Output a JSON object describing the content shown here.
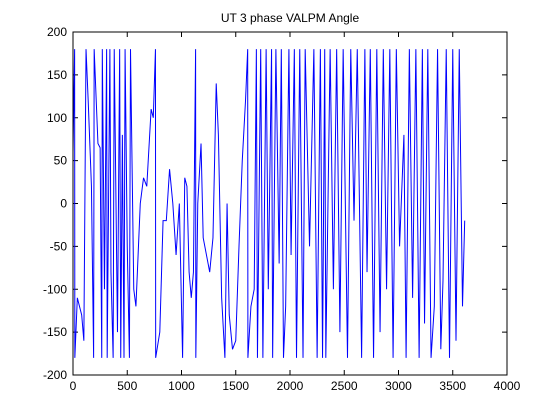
{
  "chart_data": {
    "type": "line",
    "title": "UT 3 phase VALPM Angle",
    "series": [
      {
        "color": "#0000ff",
        "x": [
          0,
          15,
          17,
          40,
          80,
          100,
          120,
          140,
          170,
          190,
          195,
          230,
          250,
          265,
          270,
          290,
          310,
          315,
          340,
          350,
          370,
          380,
          410,
          430,
          440,
          455,
          470,
          480,
          500,
          520,
          530,
          560,
          580,
          620,
          650,
          680,
          720,
          740,
          760,
          762,
          800,
          830,
          860,
          890,
          920,
          950,
          980,
          1010,
          1030,
          1050,
          1070,
          1090,
          1110,
          1130,
          1132,
          1150,
          1180,
          1200,
          1230,
          1260,
          1290,
          1320,
          1340,
          1370,
          1400,
          1420,
          1440,
          1470,
          1500,
          1530,
          1560,
          1590,
          1610,
          1612,
          1640,
          1670,
          1690,
          1700,
          1730,
          1750,
          1780,
          1800,
          1830,
          1840,
          1870,
          1900,
          1920,
          1940,
          1960,
          1990,
          2010,
          2040,
          2060,
          2090,
          2120,
          2140,
          2180,
          2220,
          2250,
          2280,
          2300,
          2320,
          2330,
          2370,
          2400,
          2430,
          2460,
          2490,
          2530,
          2560,
          2590,
          2620,
          2660,
          2690,
          2710,
          2740,
          2770,
          2800,
          2830,
          2860,
          2890,
          2920,
          2950,
          2980,
          3010,
          3050,
          3070,
          3100,
          3130,
          3160,
          3190,
          3220,
          3240,
          3270,
          3300,
          3330,
          3360,
          3390,
          3410,
          3440,
          3470,
          3500,
          3530,
          3560,
          3590,
          3610
        ],
        "values": [
          60,
          180,
          -180,
          -110,
          -130,
          -160,
          180,
          120,
          20,
          -180,
          180,
          70,
          65,
          -180,
          180,
          -100,
          180,
          -180,
          180,
          -80,
          -180,
          180,
          -150,
          180,
          -180,
          80,
          -180,
          180,
          -50,
          -180,
          180,
          -100,
          -120,
          0,
          30,
          20,
          110,
          100,
          180,
          -180,
          -150,
          -20,
          -20,
          40,
          0,
          -60,
          0,
          -180,
          30,
          20,
          -80,
          -110,
          -80,
          180,
          -180,
          0,
          70,
          -40,
          -60,
          -80,
          -40,
          140,
          80,
          -110,
          -180,
          0,
          -130,
          -170,
          -160,
          -50,
          50,
          120,
          180,
          -180,
          -120,
          -100,
          180,
          -180,
          180,
          -180,
          180,
          -100,
          180,
          -180,
          180,
          -70,
          180,
          -180,
          -120,
          180,
          -60,
          180,
          -180,
          180,
          -180,
          180,
          -50,
          180,
          -180,
          180,
          -180,
          180,
          -180,
          180,
          -100,
          180,
          -150,
          180,
          -180,
          180,
          -20,
          180,
          -180,
          180,
          -80,
          180,
          -180,
          180,
          -150,
          180,
          -100,
          180,
          -180,
          180,
          -50,
          80,
          -180,
          180,
          -110,
          180,
          -180,
          180,
          -140,
          180,
          -180,
          -120,
          180,
          -170,
          -90,
          180,
          -180,
          180,
          -160,
          180,
          -120,
          -20
        ]
      }
    ],
    "xlim": [
      0,
      4000
    ],
    "xticks": [
      0,
      500,
      1000,
      1500,
      2000,
      2500,
      3000,
      3500,
      4000
    ],
    "ylim": [
      -200,
      200
    ],
    "yticks": [
      -200,
      -150,
      -100,
      -50,
      0,
      50,
      100,
      150,
      200
    ]
  }
}
